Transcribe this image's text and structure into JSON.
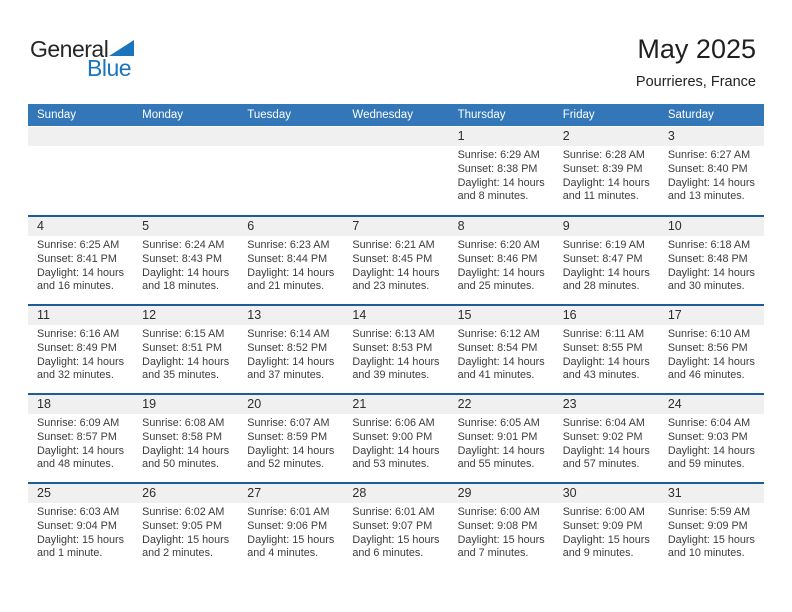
{
  "logo": {
    "general": "General",
    "blue": "Blue",
    "blue_color": "#1b75bc",
    "dark_color": "#262626"
  },
  "header": {
    "title": "May 2025",
    "location": "Pourrieres, France"
  },
  "colors": {
    "weekday_bar": "#3377b8",
    "row_border": "#1e5c97",
    "day_band": "#f0f0f0"
  },
  "weekdays": [
    "Sunday",
    "Monday",
    "Tuesday",
    "Wednesday",
    "Thursday",
    "Friday",
    "Saturday"
  ],
  "weeks": [
    [
      null,
      null,
      null,
      null,
      {
        "day": "1",
        "sunrise": "Sunrise: 6:29 AM",
        "sunset": "Sunset: 8:38 PM",
        "daylight": "Daylight: 14 hours and 8 minutes."
      },
      {
        "day": "2",
        "sunrise": "Sunrise: 6:28 AM",
        "sunset": "Sunset: 8:39 PM",
        "daylight": "Daylight: 14 hours and 11 minutes."
      },
      {
        "day": "3",
        "sunrise": "Sunrise: 6:27 AM",
        "sunset": "Sunset: 8:40 PM",
        "daylight": "Daylight: 14 hours and 13 minutes."
      }
    ],
    [
      {
        "day": "4",
        "sunrise": "Sunrise: 6:25 AM",
        "sunset": "Sunset: 8:41 PM",
        "daylight": "Daylight: 14 hours and 16 minutes."
      },
      {
        "day": "5",
        "sunrise": "Sunrise: 6:24 AM",
        "sunset": "Sunset: 8:43 PM",
        "daylight": "Daylight: 14 hours and 18 minutes."
      },
      {
        "day": "6",
        "sunrise": "Sunrise: 6:23 AM",
        "sunset": "Sunset: 8:44 PM",
        "daylight": "Daylight: 14 hours and 21 minutes."
      },
      {
        "day": "7",
        "sunrise": "Sunrise: 6:21 AM",
        "sunset": "Sunset: 8:45 PM",
        "daylight": "Daylight: 14 hours and 23 minutes."
      },
      {
        "day": "8",
        "sunrise": "Sunrise: 6:20 AM",
        "sunset": "Sunset: 8:46 PM",
        "daylight": "Daylight: 14 hours and 25 minutes."
      },
      {
        "day": "9",
        "sunrise": "Sunrise: 6:19 AM",
        "sunset": "Sunset: 8:47 PM",
        "daylight": "Daylight: 14 hours and 28 minutes."
      },
      {
        "day": "10",
        "sunrise": "Sunrise: 6:18 AM",
        "sunset": "Sunset: 8:48 PM",
        "daylight": "Daylight: 14 hours and 30 minutes."
      }
    ],
    [
      {
        "day": "11",
        "sunrise": "Sunrise: 6:16 AM",
        "sunset": "Sunset: 8:49 PM",
        "daylight": "Daylight: 14 hours and 32 minutes."
      },
      {
        "day": "12",
        "sunrise": "Sunrise: 6:15 AM",
        "sunset": "Sunset: 8:51 PM",
        "daylight": "Daylight: 14 hours and 35 minutes."
      },
      {
        "day": "13",
        "sunrise": "Sunrise: 6:14 AM",
        "sunset": "Sunset: 8:52 PM",
        "daylight": "Daylight: 14 hours and 37 minutes."
      },
      {
        "day": "14",
        "sunrise": "Sunrise: 6:13 AM",
        "sunset": "Sunset: 8:53 PM",
        "daylight": "Daylight: 14 hours and 39 minutes."
      },
      {
        "day": "15",
        "sunrise": "Sunrise: 6:12 AM",
        "sunset": "Sunset: 8:54 PM",
        "daylight": "Daylight: 14 hours and 41 minutes."
      },
      {
        "day": "16",
        "sunrise": "Sunrise: 6:11 AM",
        "sunset": "Sunset: 8:55 PM",
        "daylight": "Daylight: 14 hours and 43 minutes."
      },
      {
        "day": "17",
        "sunrise": "Sunrise: 6:10 AM",
        "sunset": "Sunset: 8:56 PM",
        "daylight": "Daylight: 14 hours and 46 minutes."
      }
    ],
    [
      {
        "day": "18",
        "sunrise": "Sunrise: 6:09 AM",
        "sunset": "Sunset: 8:57 PM",
        "daylight": "Daylight: 14 hours and 48 minutes."
      },
      {
        "day": "19",
        "sunrise": "Sunrise: 6:08 AM",
        "sunset": "Sunset: 8:58 PM",
        "daylight": "Daylight: 14 hours and 50 minutes."
      },
      {
        "day": "20",
        "sunrise": "Sunrise: 6:07 AM",
        "sunset": "Sunset: 8:59 PM",
        "daylight": "Daylight: 14 hours and 52 minutes."
      },
      {
        "day": "21",
        "sunrise": "Sunrise: 6:06 AM",
        "sunset": "Sunset: 9:00 PM",
        "daylight": "Daylight: 14 hours and 53 minutes."
      },
      {
        "day": "22",
        "sunrise": "Sunrise: 6:05 AM",
        "sunset": "Sunset: 9:01 PM",
        "daylight": "Daylight: 14 hours and 55 minutes."
      },
      {
        "day": "23",
        "sunrise": "Sunrise: 6:04 AM",
        "sunset": "Sunset: 9:02 PM",
        "daylight": "Daylight: 14 hours and 57 minutes."
      },
      {
        "day": "24",
        "sunrise": "Sunrise: 6:04 AM",
        "sunset": "Sunset: 9:03 PM",
        "daylight": "Daylight: 14 hours and 59 minutes."
      }
    ],
    [
      {
        "day": "25",
        "sunrise": "Sunrise: 6:03 AM",
        "sunset": "Sunset: 9:04 PM",
        "daylight": "Daylight: 15 hours and 1 minute."
      },
      {
        "day": "26",
        "sunrise": "Sunrise: 6:02 AM",
        "sunset": "Sunset: 9:05 PM",
        "daylight": "Daylight: 15 hours and 2 minutes."
      },
      {
        "day": "27",
        "sunrise": "Sunrise: 6:01 AM",
        "sunset": "Sunset: 9:06 PM",
        "daylight": "Daylight: 15 hours and 4 minutes."
      },
      {
        "day": "28",
        "sunrise": "Sunrise: 6:01 AM",
        "sunset": "Sunset: 9:07 PM",
        "daylight": "Daylight: 15 hours and 6 minutes."
      },
      {
        "day": "29",
        "sunrise": "Sunrise: 6:00 AM",
        "sunset": "Sunset: 9:08 PM",
        "daylight": "Daylight: 15 hours and 7 minutes."
      },
      {
        "day": "30",
        "sunrise": "Sunrise: 6:00 AM",
        "sunset": "Sunset: 9:09 PM",
        "daylight": "Daylight: 15 hours and 9 minutes."
      },
      {
        "day": "31",
        "sunrise": "Sunrise: 5:59 AM",
        "sunset": "Sunset: 9:09 PM",
        "daylight": "Daylight: 15 hours and 10 minutes."
      }
    ]
  ]
}
